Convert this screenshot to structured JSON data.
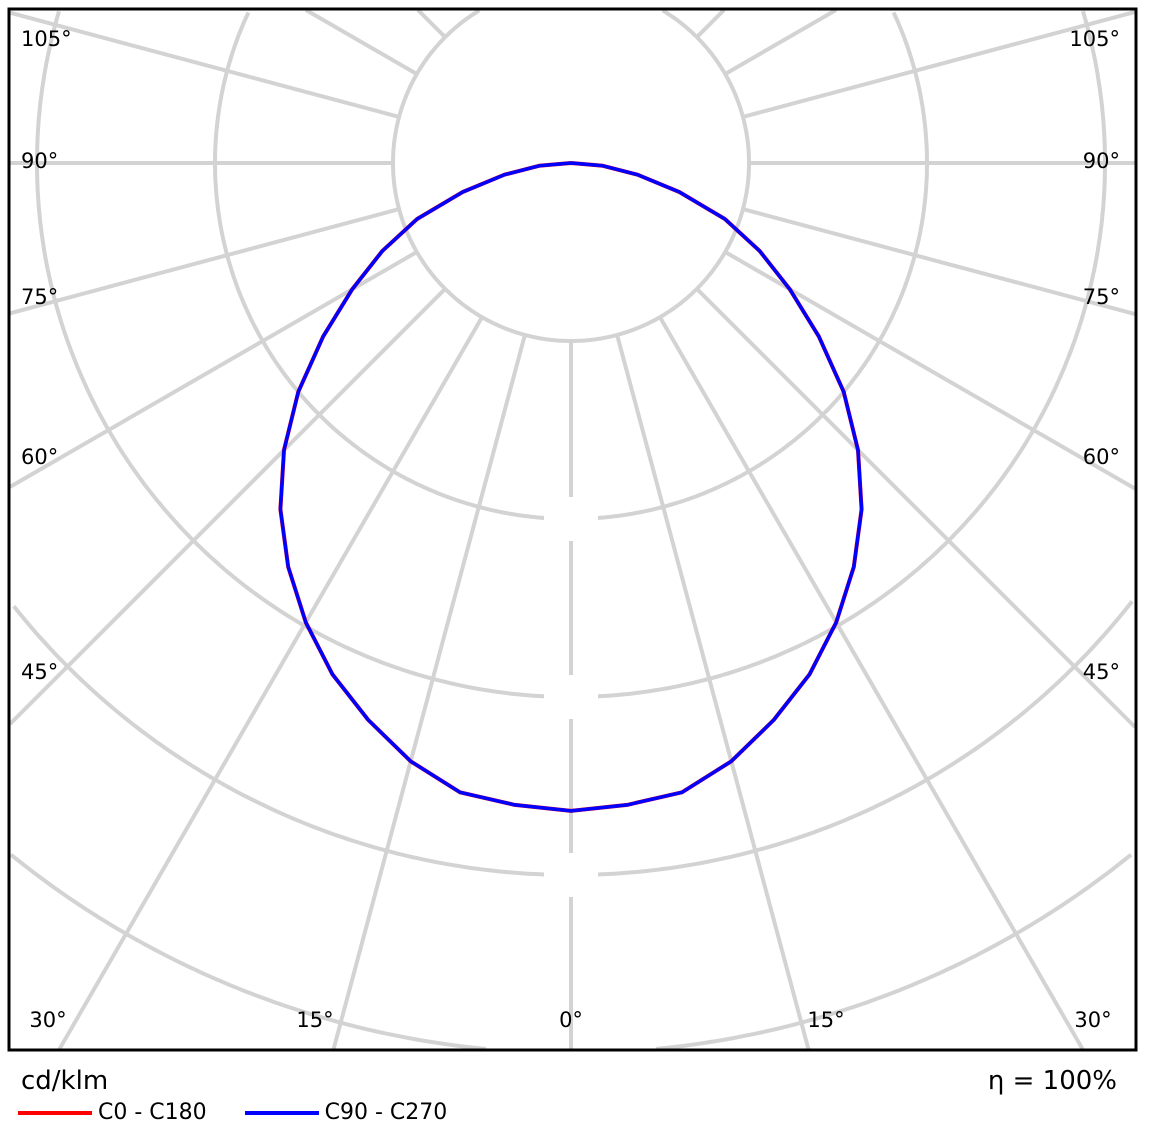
{
  "chart_data": {
    "type": "polar-line",
    "unit_label": "cd/klm",
    "efficiency_label": "η = 100%",
    "gamma_ticks_deg": [
      0,
      15,
      30,
      45,
      60,
      75,
      90,
      105
    ],
    "angle_labels": {
      "left": [
        "105°",
        "90°",
        "75°",
        "60°",
        "45°"
      ],
      "right": [
        "105°",
        "90°",
        "75°",
        "60°",
        "45°"
      ],
      "bottom": [
        "30°",
        "15°",
        "0°",
        "15°",
        "30°"
      ]
    },
    "grid": true,
    "legend_placement": "bottom-left",
    "gamma_deg": [
      0,
      5,
      10,
      15,
      20,
      25,
      30,
      35,
      40,
      45,
      50,
      55,
      60,
      65,
      70,
      75,
      80,
      85,
      90
    ],
    "series": [
      {
        "name": "C0 - C180",
        "color": "#ff0000",
        "values": [
          3.64,
          3.62,
          3.59,
          3.48,
          3.33,
          3.17,
          2.98,
          2.77,
          2.54,
          2.28,
          2.0,
          1.7,
          1.42,
          1.17,
          0.92,
          0.63,
          0.38,
          0.18,
          0
        ]
      },
      {
        "name": "C90 - C270",
        "color": "#0000ff",
        "values": [
          3.64,
          3.62,
          3.59,
          3.48,
          3.33,
          3.17,
          2.98,
          2.77,
          2.54,
          2.28,
          2.0,
          1.7,
          1.42,
          1.17,
          0.92,
          0.63,
          0.38,
          0.18,
          0
        ]
      }
    ]
  }
}
